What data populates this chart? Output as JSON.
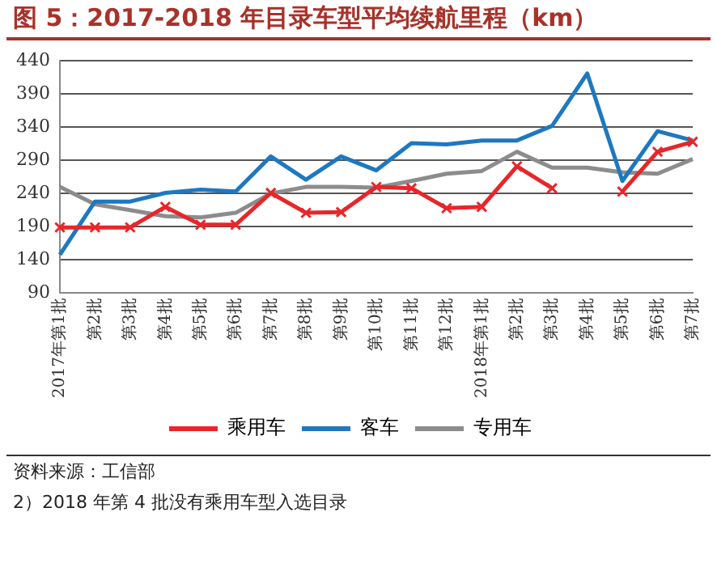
{
  "chart_data": {
    "type": "line",
    "title": "图 5：2017-2018 年目录车型平均续航里程（km）",
    "categories": [
      "2017年第1批",
      "第2批",
      "第3批",
      "第4批",
      "第5批",
      "第6批",
      "第7批",
      "第8批",
      "第9批",
      "第10批",
      "第11批",
      "第12批",
      "2018年第1批",
      "第2批",
      "第3批",
      "第4批",
      "第5批",
      "第6批",
      "第7批"
    ],
    "series": [
      {
        "name": "乘用车",
        "color": "#e8262a",
        "marker": "cross",
        "values": [
          189,
          189,
          189,
          220,
          193,
          193,
          241,
          211,
          212,
          250,
          248,
          218,
          220,
          281,
          248,
          null,
          243,
          303,
          318
        ]
      },
      {
        "name": "客车",
        "color": "#1e78c0",
        "marker": "none",
        "values": [
          148,
          228,
          228,
          241,
          246,
          243,
          296,
          261,
          296,
          275,
          316,
          314,
          320,
          320,
          342,
          421,
          259,
          334,
          320
        ]
      },
      {
        "name": "专用车",
        "color": "#8c8c8c",
        "marker": "none",
        "values": [
          250,
          224,
          215,
          206,
          204,
          211,
          240,
          250,
          250,
          249,
          259,
          270,
          274,
          303,
          279,
          279,
          272,
          270,
          292
        ]
      }
    ],
    "ylim": [
      90,
      440
    ],
    "yticks": [
      90,
      140,
      190,
      240,
      290,
      340,
      390,
      440
    ],
    "grid": "y",
    "line_style": "solid",
    "legend": "bottom",
    "annotations": [
      "资料来源：工信部",
      "2）2018 年第 4 批没有乘用车型入选目录"
    ]
  }
}
